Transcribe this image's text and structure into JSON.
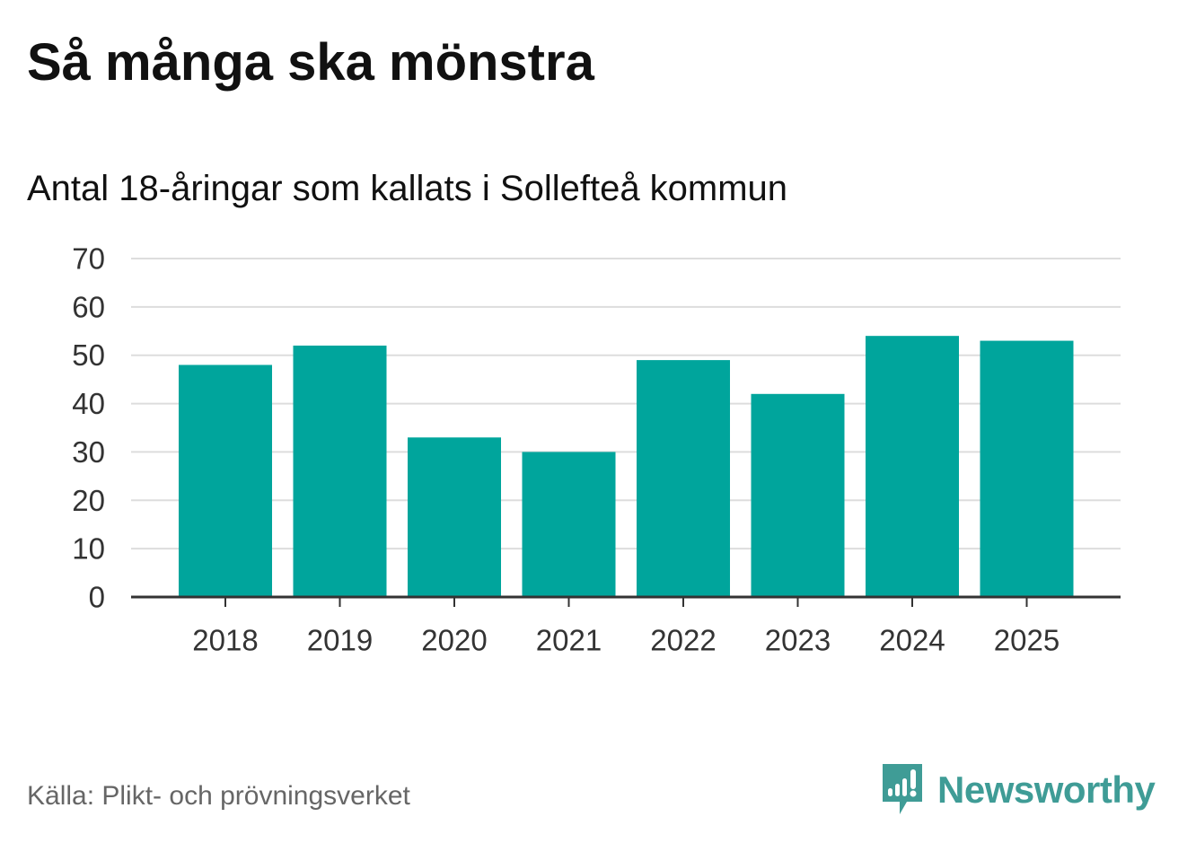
{
  "title": "Så många ska mönstra",
  "subtitle": "Antal 18-åringar som kallats i Sollefteå kommun",
  "source": "Källa: Plikt- och prövningsverket",
  "brand": {
    "name": "Newsworthy",
    "icon": "newsworthy-logo-icon"
  },
  "colors": {
    "bar": "#00a59c",
    "grid": "#dddddd",
    "axis": "#333333",
    "brand": "#3f9c96"
  },
  "chart_data": {
    "type": "bar",
    "title": "Så många ska mönstra",
    "subtitle": "Antal 18-åringar som kallats i Sollefteå kommun",
    "xlabel": "",
    "ylabel": "",
    "categories": [
      "2018",
      "2019",
      "2020",
      "2021",
      "2022",
      "2023",
      "2024",
      "2025"
    ],
    "values": [
      48,
      52,
      33,
      30,
      49,
      42,
      54,
      53
    ],
    "ylim": [
      0,
      70
    ],
    "yticks": [
      "0",
      "10",
      "20",
      "30",
      "40",
      "50",
      "60",
      "70"
    ],
    "grid": true,
    "legend": "none"
  }
}
